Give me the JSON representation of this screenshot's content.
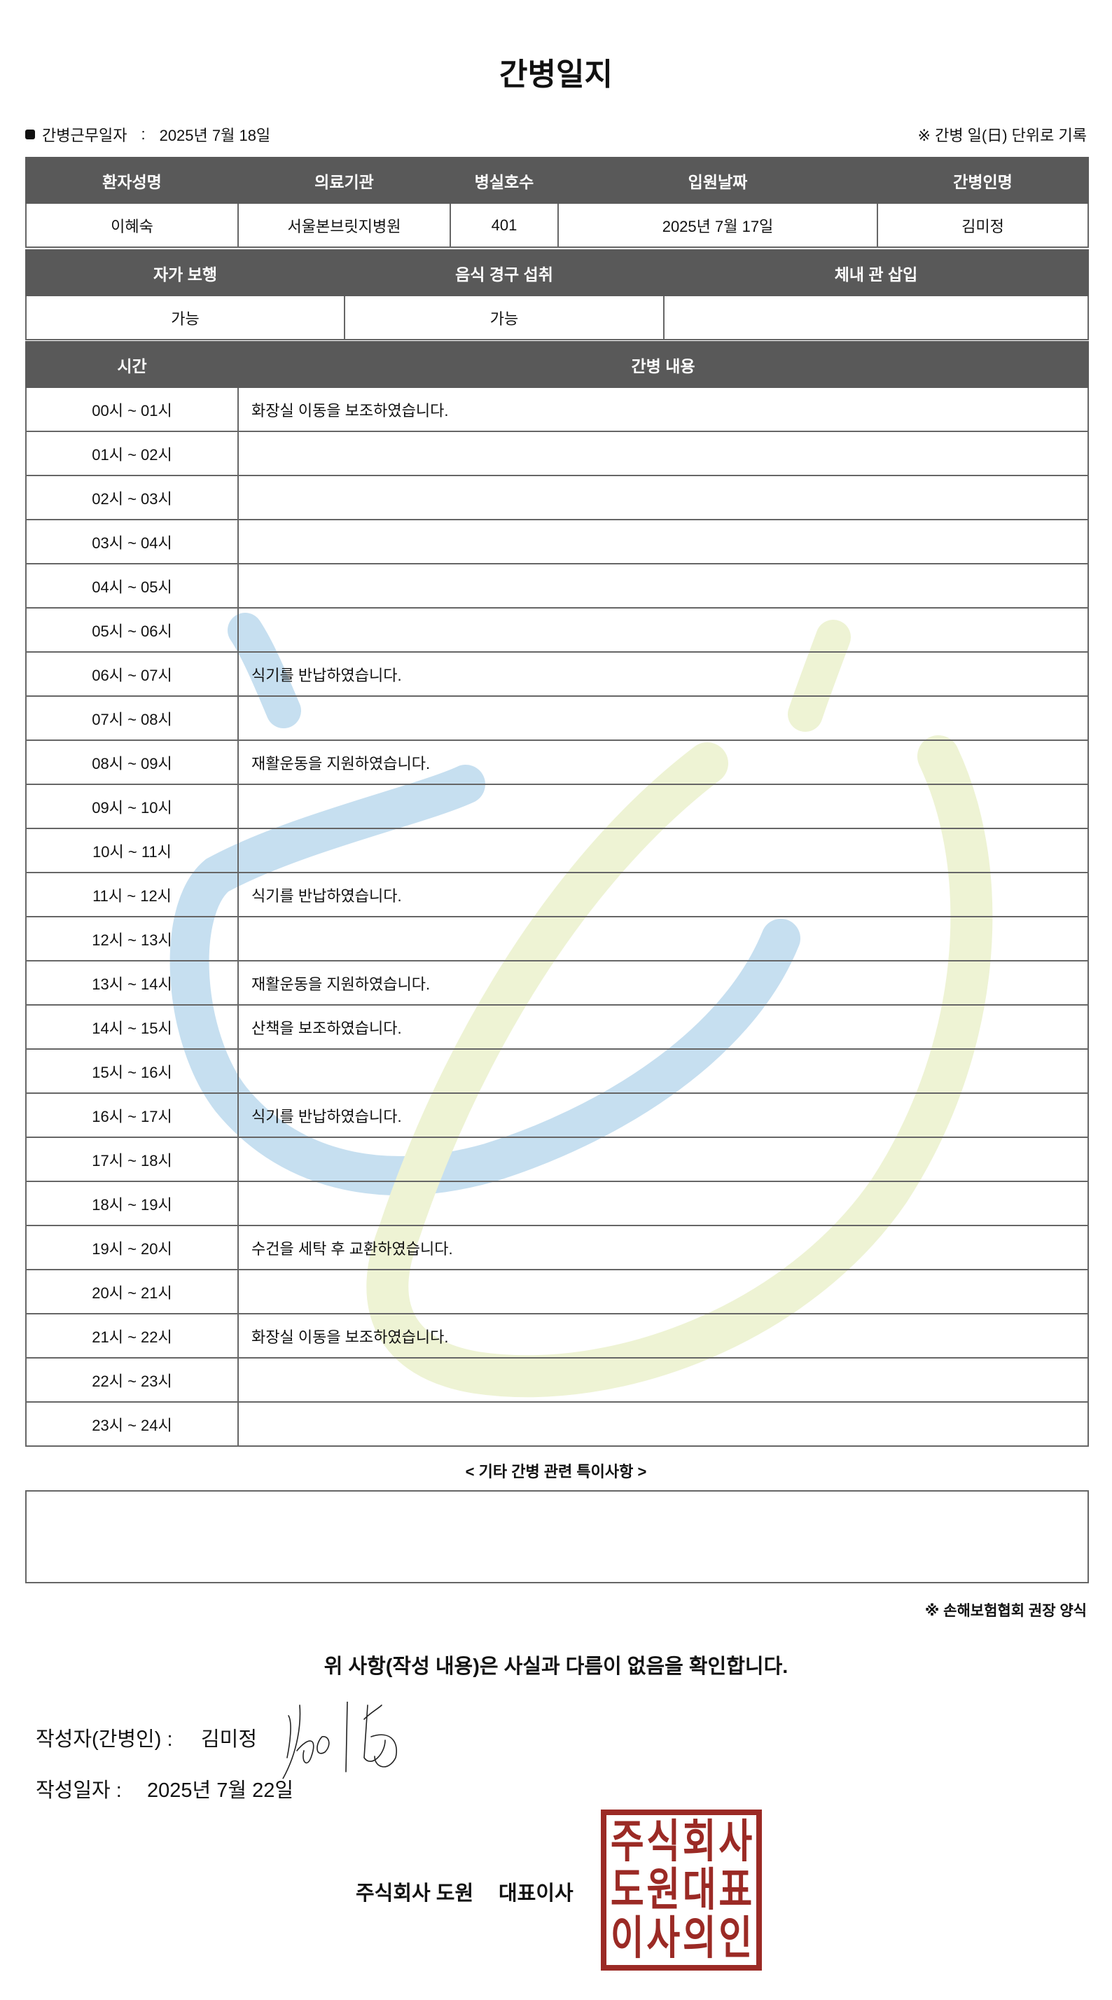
{
  "title": "간병일지",
  "info": {
    "work_date_label": "간병근무일자",
    "separator": ":",
    "work_date": "2025년 7월 18일",
    "note": "※ 간병 일(日) 단위로 기록"
  },
  "patient_table": {
    "headers": [
      "환자성명",
      "의료기관",
      "병실호수",
      "입원날짜",
      "간병인명"
    ],
    "values": [
      "이혜숙",
      "서울본브릿지병원",
      "401",
      "2025년 7월 17일",
      "김미정"
    ]
  },
  "status_table": {
    "headers": [
      "자가 보행",
      "음식 경구 섭취",
      "체내 관 삽입"
    ],
    "values": [
      "가능",
      "가능",
      ""
    ]
  },
  "log_table": {
    "headers": [
      "시간",
      "간병 내용"
    ],
    "rows": [
      {
        "time": "00시 ~ 01시",
        "content": "화장실 이동을 보조하였습니다."
      },
      {
        "time": "01시 ~ 02시",
        "content": ""
      },
      {
        "time": "02시 ~ 03시",
        "content": ""
      },
      {
        "time": "03시 ~ 04시",
        "content": ""
      },
      {
        "time": "04시 ~ 05시",
        "content": ""
      },
      {
        "time": "05시 ~ 06시",
        "content": ""
      },
      {
        "time": "06시 ~ 07시",
        "content": "식기를 반납하였습니다."
      },
      {
        "time": "07시 ~ 08시",
        "content": ""
      },
      {
        "time": "08시 ~ 09시",
        "content": "재활운동을 지원하였습니다."
      },
      {
        "time": "09시 ~ 10시",
        "content": ""
      },
      {
        "time": "10시 ~ 11시",
        "content": ""
      },
      {
        "time": "11시 ~ 12시",
        "content": "식기를 반납하였습니다."
      },
      {
        "time": "12시 ~ 13시",
        "content": ""
      },
      {
        "time": "13시 ~ 14시",
        "content": "재활운동을 지원하였습니다."
      },
      {
        "time": "14시 ~ 15시",
        "content": "산책을 보조하였습니다."
      },
      {
        "time": "15시 ~ 16시",
        "content": ""
      },
      {
        "time": "16시 ~ 17시",
        "content": "식기를 반납하였습니다."
      },
      {
        "time": "17시 ~ 18시",
        "content": ""
      },
      {
        "time": "18시 ~ 19시",
        "content": ""
      },
      {
        "time": "19시 ~ 20시",
        "content": "수건을 세탁 후 교환하였습니다."
      },
      {
        "time": "20시 ~ 21시",
        "content": ""
      },
      {
        "time": "21시 ~ 22시",
        "content": "화장실 이동을 보조하였습니다."
      },
      {
        "time": "22시 ~ 23시",
        "content": ""
      },
      {
        "time": "23시 ~ 24시",
        "content": ""
      }
    ]
  },
  "etc": {
    "label": "< 기타 간병 관련 특이사항 >",
    "value": ""
  },
  "form_note": "※ 손해보험협회 권장 양식",
  "confirm_text": "위 사항(작성 내용)은 사실과 다름이 없음을 확인합니다.",
  "writer": {
    "label": "작성자(간병인) :",
    "name": "김미정"
  },
  "written_date": {
    "label": "작성일자 :",
    "value": "2025년 7월 22일"
  },
  "company": {
    "name": "주식회사 도원",
    "title": "대표이사"
  },
  "stamp_text": [
    "주",
    "식",
    "회",
    "사",
    "도",
    "원",
    "대",
    "표",
    "이",
    "사",
    "의",
    "인"
  ],
  "colors": {
    "header_bg": "#595959",
    "stamp": "#9b2a25",
    "watermark_blue": "#c6dff0",
    "watermark_green": "#eef3d4"
  }
}
